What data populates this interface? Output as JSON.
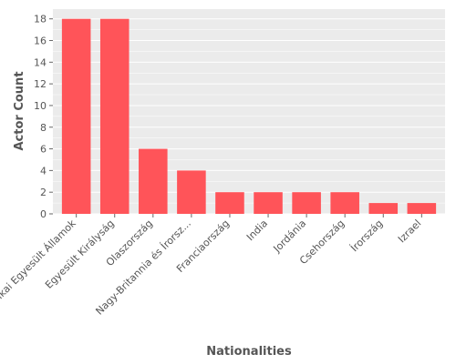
{
  "chart_data": {
    "type": "bar",
    "title": "",
    "xlabel": "Nationalities",
    "ylabel": "Actor Count",
    "categories": [
      "Amerikai Egyesült Államok",
      "Egyesült Királyság",
      "Olaszország",
      "Nagy-Britannia és Írorsz...",
      "Franciaország",
      "India",
      "Jordánia",
      "Csehország",
      "Írország",
      "Izrael"
    ],
    "values": [
      18,
      18,
      6,
      4,
      2,
      2,
      2,
      2,
      1,
      1
    ],
    "ylim": [
      0,
      18.9
    ],
    "yticks": [
      0,
      2,
      4,
      6,
      8,
      10,
      12,
      14,
      16,
      18
    ],
    "grid": true,
    "legend": "none",
    "colors": {
      "bar": "#ff5459",
      "panel_background": "#ebebeb",
      "grid": "#ffffff",
      "text": "#555555"
    }
  }
}
